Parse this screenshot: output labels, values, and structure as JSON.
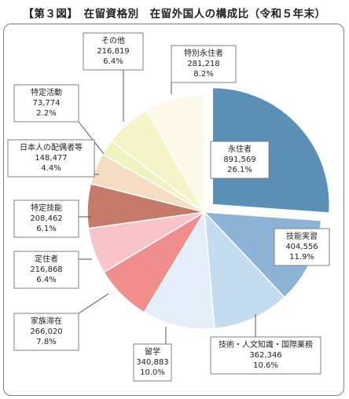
{
  "chart_data": {
    "type": "pie",
    "title": "【第３図】　在留資格別　在留外国人の構成比（令和５年末）",
    "start": "12 o'clock",
    "direction": "clockwise",
    "slices": [
      {
        "name": "永住者",
        "value": "891,569",
        "pct": "26.1%",
        "color": "#5b8fb5"
      },
      {
        "name": "技能実習",
        "value": "404,556",
        "pct": "11.9%",
        "color": "#8db3d6"
      },
      {
        "name": "技術・人文知識・国際業務",
        "value": "362,346",
        "pct": "10.6%",
        "color": "#c3dcef"
      },
      {
        "name": "留学",
        "value": "340,883",
        "pct": "10.0%",
        "color": "#e3eef8"
      },
      {
        "name": "家族滞在",
        "value": "266,020",
        "pct": "7.8%",
        "color": "#f08e8e"
      },
      {
        "name": "定住者",
        "value": "216,868",
        "pct": "6.4%",
        "color": "#f8c4c9"
      },
      {
        "name": "特定技能",
        "value": "208,462",
        "pct": "6.1%",
        "color": "#c57a6a"
      },
      {
        "name": "日本人の配偶者等",
        "value": "148,477",
        "pct": "4.4%",
        "color": "#f7dcc4"
      },
      {
        "name": "特定活動",
        "value": "73,774",
        "pct": "2.2%",
        "color": "#eef3bf"
      },
      {
        "name": "その他",
        "value": "216,819",
        "pct": "6.4%",
        "color": "#f5f3c8"
      },
      {
        "name": "特別永住者",
        "value": "281,218",
        "pct": "8.2%",
        "color": "#fcf8ea"
      }
    ]
  }
}
